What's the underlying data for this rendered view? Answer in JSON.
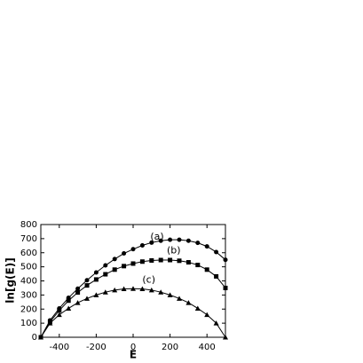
{
  "chart_data": {
    "type": "line",
    "xlabel": "E",
    "ylabel": "ln[g(E)]",
    "x": [
      -500,
      -450,
      -400,
      -350,
      -300,
      -250,
      -200,
      -150,
      -100,
      -50,
      0,
      50,
      100,
      150,
      200,
      250,
      300,
      350,
      400,
      450,
      500
    ],
    "series": [
      {
        "name": "(a)",
        "color": "#000000",
        "marker": "circle",
        "label_at": [
          130,
          712
        ],
        "values": [
          0,
          120,
          205,
          280,
          345,
          405,
          460,
          510,
          555,
          595,
          625,
          652,
          672,
          685,
          692,
          692,
          685,
          670,
          645,
          605,
          550
        ]
      },
      {
        "name": "(b)",
        "color": "#000000",
        "marker": "square",
        "label_at": [
          220,
          615
        ],
        "values": [
          0,
          110,
          190,
          260,
          318,
          368,
          410,
          447,
          480,
          505,
          523,
          537,
          545,
          548,
          548,
          543,
          532,
          513,
          480,
          432,
          350
        ]
      },
      {
        "name": "(c)",
        "color": "#000000",
        "marker": "triangle",
        "label_at": [
          85,
          405
        ],
        "values": [
          0,
          100,
          160,
          205,
          245,
          275,
          300,
          320,
          335,
          343,
          345,
          343,
          335,
          320,
          300,
          275,
          245,
          205,
          160,
          100,
          0
        ]
      }
    ],
    "xlim": [
      -500,
      500
    ],
    "xticks": [
      -400,
      -200,
      0,
      200,
      400
    ],
    "ylim": [
      0,
      800
    ],
    "yticks": [
      0,
      100,
      200,
      300,
      400,
      500,
      600,
      700,
      800
    ]
  }
}
